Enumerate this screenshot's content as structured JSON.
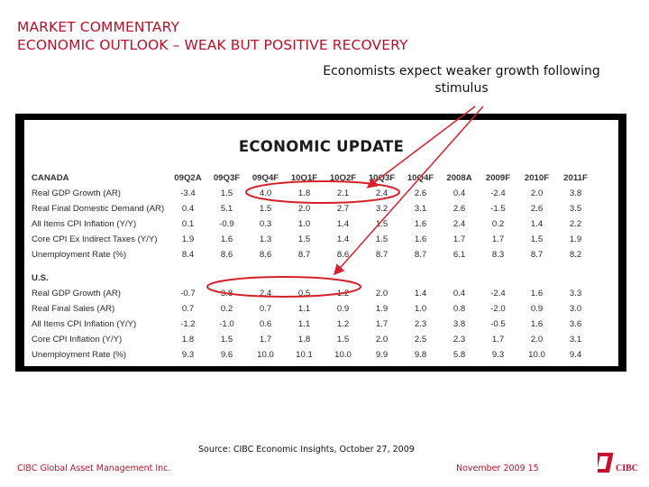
{
  "header": {
    "line1": "MARKET COMMENTARY",
    "line2": "ECONOMIC OUTLOOK – WEAK BUT POSITIVE RECOVERY"
  },
  "callout": {
    "line1": "Economists expect weaker growth following",
    "line2": "stimulus"
  },
  "table": {
    "title": "ECONOMIC UPDATE",
    "columns": [
      "09Q2A",
      "09Q3F",
      "09Q4F",
      "10Q1F",
      "10Q2F",
      "10Q3F",
      "10Q4F",
      "2008A",
      "2009F",
      "2010F",
      "2011F"
    ],
    "canada": {
      "label": "CANADA",
      "rows": [
        {
          "label": "Real GDP Growth (AR)",
          "values": [
            "-3.4",
            "1.5",
            "4.0",
            "1.8",
            "2.1",
            "2.4",
            "2.6",
            "0.4",
            "-2.4",
            "2.0",
            "3.8"
          ]
        },
        {
          "label": "Real Final Domestic Demand (AR)",
          "values": [
            "0.4",
            "5.1",
            "1.5",
            "2.0",
            "2.7",
            "3.2",
            "3.1",
            "2.6",
            "-1.5",
            "2.6",
            "3.5"
          ]
        },
        {
          "label": "All Items CPI Inflation (Y/Y)",
          "values": [
            "0.1",
            "-0.9",
            "0.3",
            "1.0",
            "1.4",
            "1.5",
            "1.6",
            "2.4",
            "0.2",
            "1.4",
            "2.2"
          ]
        },
        {
          "label": "Core CPI Ex Indirect Taxes (Y/Y)",
          "values": [
            "1.9",
            "1.6",
            "1.3",
            "1.5",
            "1.4",
            "1.5",
            "1.6",
            "1.7",
            "1.7",
            "1.5",
            "1.9"
          ]
        },
        {
          "label": "Unemployment Rate (%)",
          "values": [
            "8.4",
            "8.6",
            "8.6",
            "8.7",
            "8.6",
            "8.7",
            "8.7",
            "6.1",
            "8.3",
            "8.7",
            "8.2"
          ]
        }
      ]
    },
    "us": {
      "label": "U.S.",
      "rows": [
        {
          "label": "Real GDP Growth (AR)",
          "values": [
            "-0.7",
            "3.8",
            "2.4",
            "0.5",
            "1.2",
            "2.0",
            "1.4",
            "0.4",
            "-2.4",
            "1.6",
            "3.3"
          ]
        },
        {
          "label": "Real Final Sales (AR)",
          "values": [
            "0.7",
            "0.2",
            "0.7",
            "1.1",
            "0.9",
            "1.9",
            "1.0",
            "0.8",
            "-2.0",
            "0.9",
            "3.0"
          ]
        },
        {
          "label": "All Items CPI Inflation (Y/Y)",
          "values": [
            "-1.2",
            "-1.0",
            "0.6",
            "1.1",
            "1.2",
            "1.7",
            "2.3",
            "3.8",
            "-0.5",
            "1.6",
            "3.6"
          ]
        },
        {
          "label": "Core CPI Inflation (Y/Y)",
          "values": [
            "1.8",
            "1.5",
            "1.7",
            "1.8",
            "1.5",
            "2.0",
            "2.5",
            "2.3",
            "1.7",
            "2.0",
            "3.1"
          ]
        },
        {
          "label": "Unemployment Rate (%)",
          "values": [
            "9.3",
            "9.6",
            "10.0",
            "10.1",
            "10.0",
            "9.9",
            "9.8",
            "5.8",
            "9.3",
            "10.0",
            "9.4"
          ]
        }
      ]
    }
  },
  "source": "Source: CIBC Economic Insights, October 27, 2009",
  "footer": {
    "company": "CIBC Global Asset Management Inc.",
    "date_page": "November  2009 15",
    "logo_text": "CIBC"
  },
  "colors": {
    "brand_red": "#b8122b",
    "annotation_red": "#d6202a",
    "logo_red": "#c8102e"
  }
}
